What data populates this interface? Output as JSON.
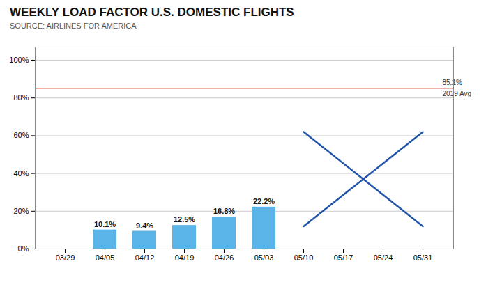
{
  "chart_data": {
    "type": "bar",
    "title": "WEEKLY LOAD FACTOR U.S. DOMESTIC FLIGHTS",
    "subtitle": "SOURCE: AIRLINES FOR AMERICA",
    "categories": [
      "03/29",
      "04/05",
      "04/12",
      "04/19",
      "04/26",
      "05/03",
      "05/10",
      "05/17",
      "05/24",
      "05/31"
    ],
    "values": [
      null,
      10.1,
      9.4,
      12.5,
      16.8,
      22.2,
      null,
      null,
      null,
      null
    ],
    "value_labels": [
      null,
      "10.1%",
      "9.4%",
      "12.5%",
      "16.8%",
      "22.2%",
      null,
      null,
      null,
      null
    ],
    "data_labels": true,
    "color": "#5ab4e8",
    "ylim": [
      0,
      107
    ],
    "yticks": [
      {
        "value": 0,
        "label": "0%"
      },
      {
        "value": 20,
        "label": "20%"
      },
      {
        "value": 40,
        "label": "40%"
      },
      {
        "value": 60,
        "label": "60%"
      },
      {
        "value": 80,
        "label": "80%"
      },
      {
        "value": 100,
        "label": "100%"
      }
    ],
    "grid": true,
    "reference_line": {
      "value": 85.1,
      "labels": [
        "85.1%",
        "2019 Avg"
      ],
      "color": "#e06060"
    },
    "cross_lines": {
      "color": "#2255aa",
      "lines": [
        {
          "x": [
            "05/10",
            "05/31"
          ],
          "y": [
            62,
            12
          ]
        },
        {
          "x": [
            "05/10",
            "05/31"
          ],
          "y": [
            12,
            62
          ]
        }
      ]
    }
  }
}
